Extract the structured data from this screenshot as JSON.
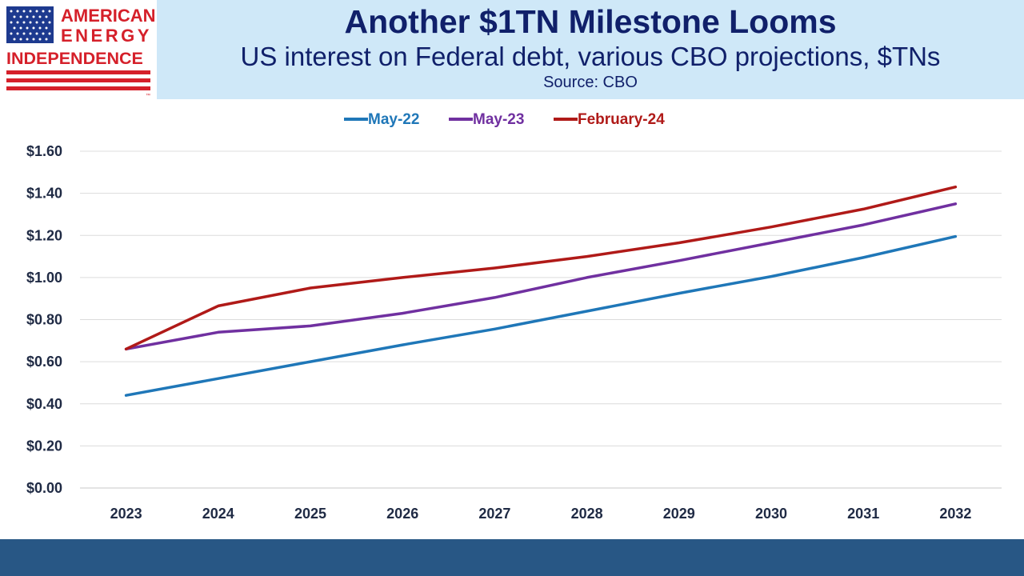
{
  "logo": {
    "line1": "AMERICAN",
    "line2": "ENERGY",
    "line3": "INDEPENDENCE",
    "tm": "™",
    "flag_blue": "#1d3a8f",
    "flag_red": "#d5202a"
  },
  "header": {
    "title": "Another $1TN Milestone Looms",
    "subtitle": "US interest on Federal debt, various CBO projections, $TNs",
    "source": "Source: CBO"
  },
  "chart_data": {
    "type": "line",
    "categories": [
      "2023",
      "2024",
      "2025",
      "2026",
      "2027",
      "2028",
      "2029",
      "2030",
      "2031",
      "2032"
    ],
    "ylim": [
      0,
      1.6
    ],
    "yticks": [
      0,
      0.2,
      0.4,
      0.6,
      0.8,
      1.0,
      1.2,
      1.4,
      1.6
    ],
    "ytick_labels": [
      "$0.00",
      "$0.20",
      "$0.40",
      "$0.60",
      "$0.80",
      "$1.00",
      "$1.20",
      "$1.40",
      "$1.60"
    ],
    "grid": true,
    "legend_position": "top-center",
    "series": [
      {
        "name": "May-22",
        "color": "#1f77b8",
        "values": [
          0.44,
          0.52,
          0.6,
          0.68,
          0.755,
          0.84,
          0.925,
          1.005,
          1.095,
          1.195
        ]
      },
      {
        "name": "May-23",
        "color": "#7030a0",
        "values": [
          0.66,
          0.74,
          0.77,
          0.83,
          0.905,
          1.0,
          1.08,
          1.165,
          1.25,
          1.35
        ]
      },
      {
        "name": "February-24",
        "color": "#b01a18",
        "values": [
          0.66,
          0.865,
          0.95,
          1.0,
          1.045,
          1.1,
          1.165,
          1.24,
          1.325,
          1.43
        ]
      }
    ]
  }
}
